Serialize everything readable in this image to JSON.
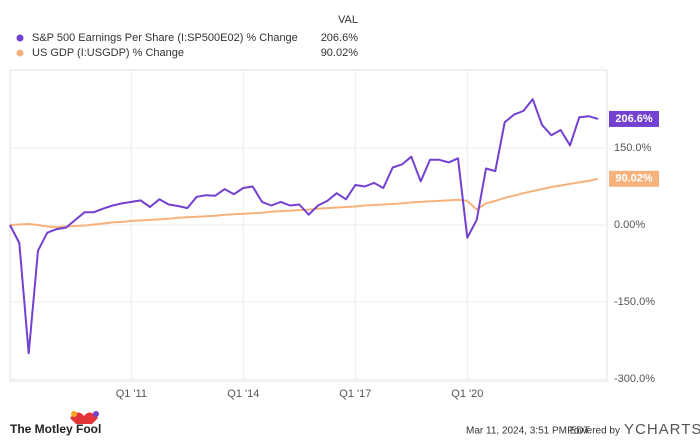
{
  "chart_data": {
    "type": "line",
    "legend_header": "VAL",
    "categories": [
      null,
      null,
      null,
      null,
      null,
      null,
      null,
      null,
      null,
      null,
      null,
      null,
      null,
      "Q1 '11",
      null,
      null,
      null,
      null,
      null,
      null,
      null,
      null,
      null,
      null,
      null,
      "Q1 '14",
      null,
      null,
      null,
      null,
      null,
      null,
      null,
      null,
      null,
      null,
      null,
      "Q1 '17",
      null,
      null,
      null,
      null,
      null,
      null,
      null,
      null,
      null,
      null,
      null,
      "Q1 '20",
      null,
      null,
      null,
      null,
      null,
      null,
      null,
      null,
      null,
      null,
      null,
      null,
      null,
      null
    ],
    "series": [
      {
        "name": "S&P 500 Earnings Per Share (I:SP500E02) % Change",
        "color": "#7340cf",
        "last_value_label": "206.6%",
        "values": [
          0,
          -35,
          -250,
          -50,
          -15,
          -8,
          -5,
          10,
          25,
          25,
          32,
          38,
          42,
          45,
          48,
          35,
          50,
          40,
          37,
          33,
          55,
          58,
          57,
          70,
          60,
          72,
          75,
          45,
          38,
          45,
          38,
          40,
          20,
          38,
          47,
          62,
          50,
          78,
          75,
          82,
          72,
          112,
          118,
          133,
          85,
          127,
          127,
          122,
          130,
          -25,
          10,
          110,
          105,
          200,
          215,
          222,
          245,
          195,
          175,
          185,
          155,
          210,
          212,
          206.6
        ]
      },
      {
        "name": "US GDP (I:USGDP) % Change",
        "color": "#f6b27c",
        "last_value_label": "90.02%",
        "values": [
          0,
          1,
          2,
          0,
          -3,
          -4,
          -3,
          -2,
          -1,
          1,
          3,
          5,
          6,
          8,
          9,
          10,
          11,
          12,
          14,
          15,
          16,
          17,
          18,
          20,
          21,
          22,
          23,
          24,
          26,
          27,
          28,
          29,
          30,
          32,
          33,
          34,
          35,
          36,
          38,
          39,
          40,
          41,
          42,
          44,
          45,
          46,
          47,
          48,
          49,
          47,
          30,
          42,
          47,
          53,
          57,
          62,
          66,
          70,
          74,
          77,
          80,
          83,
          86,
          90.02
        ]
      }
    ],
    "ylim": [
      -300,
      300
    ],
    "yticks": [
      {
        "value": 150,
        "label": "150.0%"
      },
      {
        "value": 0,
        "label": "0.00%"
      },
      {
        "value": -150,
        "label": "-150.0%"
      },
      {
        "value": -300,
        "label": "-300.0%"
      }
    ],
    "grid": true
  },
  "footer": {
    "brand": "The Motley Fool",
    "timestamp": "Mar 11, 2024, 3:51 PM EDT",
    "powered": "Powered by",
    "provider": "YCHARTS"
  }
}
